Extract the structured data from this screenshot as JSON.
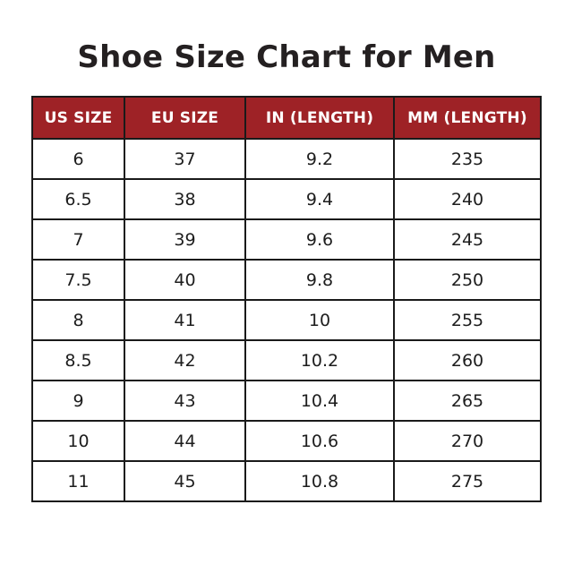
{
  "title": "Shoe Size Chart for Men",
  "table": {
    "headers": [
      "US SIZE",
      "EU SIZE",
      "IN (LENGTH)",
      "MM (LENGTH)"
    ],
    "rows": [
      [
        "6",
        "37",
        "9.2",
        "235"
      ],
      [
        "6.5",
        "38",
        "9.4",
        "240"
      ],
      [
        "7",
        "39",
        "9.6",
        "245"
      ],
      [
        "7.5",
        "40",
        "9.8",
        "250"
      ],
      [
        "8",
        "41",
        "10",
        "255"
      ],
      [
        "8.5",
        "42",
        "10.2",
        "260"
      ],
      [
        "9",
        "43",
        "10.4",
        "265"
      ],
      [
        "10",
        "44",
        "10.6",
        "270"
      ],
      [
        "11",
        "45",
        "10.8",
        "275"
      ]
    ]
  },
  "colors": {
    "header_bg": "#9E2226",
    "header_text": "#FFFFFF",
    "border": "#1A1A1A",
    "title_text": "#242021",
    "cell_text": "#1D1D1D",
    "background": "#FFFFFF"
  },
  "chart_data": {
    "type": "table",
    "title": "Shoe Size Chart for Men",
    "columns": [
      "US SIZE",
      "EU SIZE",
      "IN (LENGTH)",
      "MM (LENGTH)"
    ],
    "rows": [
      [
        6,
        37,
        9.2,
        235
      ],
      [
        6.5,
        38,
        9.4,
        240
      ],
      [
        7,
        39,
        9.6,
        245
      ],
      [
        7.5,
        40,
        9.8,
        250
      ],
      [
        8,
        41,
        10,
        255
      ],
      [
        8.5,
        42,
        10.2,
        260
      ],
      [
        9,
        43,
        10.4,
        265
      ],
      [
        10,
        44,
        10.6,
        270
      ],
      [
        11,
        45,
        10.8,
        275
      ]
    ]
  }
}
